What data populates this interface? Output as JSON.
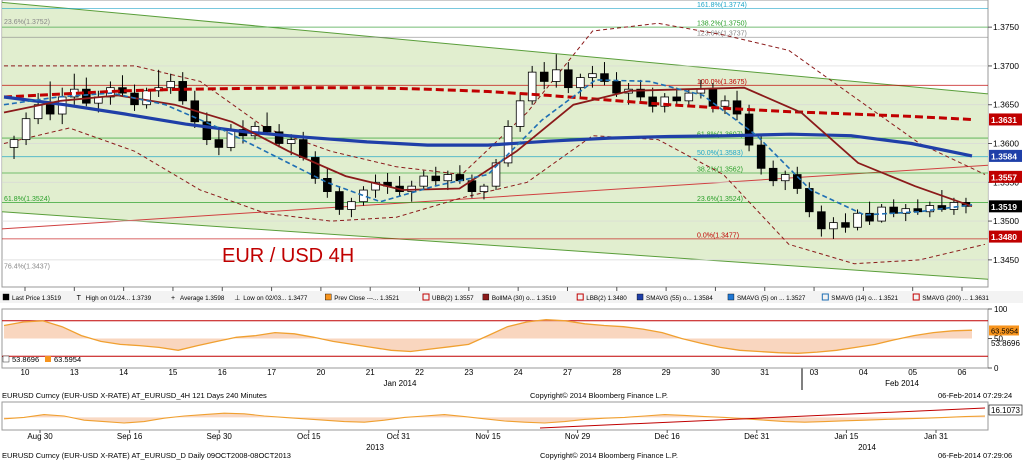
{
  "chart_data": {
    "type": "candlestick",
    "title": "EUR / USD 4H",
    "main_panel": {
      "ylim": [
        1.3415,
        1.3785
      ],
      "y_ticks": [
        "1.3450",
        "1.3500",
        "1.3550",
        "1.3600",
        "1.3650",
        "1.3700",
        "1.3750"
      ],
      "x_ticks": [
        "10",
        "13",
        "14",
        "15",
        "16",
        "17",
        "20",
        "21",
        "22",
        "23",
        "24",
        "27",
        "28",
        "29",
        "30",
        "31",
        "03",
        "04",
        "05",
        "06"
      ],
      "x_group_labels": [
        "Jan 2014",
        "Feb 2014"
      ],
      "price_tags": [
        {
          "label": "1.3631",
          "value": 1.3631,
          "color": "#c00000"
        },
        {
          "label": "1.3584",
          "value": 1.3584,
          "color": "#1f3fa8"
        },
        {
          "label": "1.3557",
          "value": 1.3557,
          "color": "#c00000"
        },
        {
          "label": "1.3519",
          "value": 1.3519,
          "color": "#000000"
        },
        {
          "label": "1.3480",
          "value": 1.348,
          "color": "#c00000"
        }
      ],
      "fib_levels_right": [
        {
          "label": "161.8%(1.3774)",
          "value": 1.3774
        },
        {
          "label": "138.2%(1.3750)",
          "value": 1.375
        },
        {
          "label": "123.6%(1.3737)",
          "value": 1.3737
        },
        {
          "label": "100.0%(1.3675)",
          "value": 1.3675
        },
        {
          "label": "61.8%(1.3607)",
          "value": 1.3607
        },
        {
          "label": "50.0%(1.3583)",
          "value": 1.3583
        },
        {
          "label": "38.2%(1.3562)",
          "value": 1.3562
        },
        {
          "label": "23.6%(1.3524)",
          "value": 1.3524
        },
        {
          "label": "0.0%(1.3477)",
          "value": 1.3477
        }
      ],
      "fib_levels_left": [
        {
          "label": "23.6%(1.3752)",
          "value": 1.3752
        },
        {
          "label": "61.8%(1.3524)",
          "value": 1.3524
        },
        {
          "label": "76.4%(1.3437)",
          "value": 1.3437
        }
      ],
      "candles": [
        [
          1.3595,
          1.361,
          1.358,
          1.3605
        ],
        [
          1.3605,
          1.364,
          1.3598,
          1.3632
        ],
        [
          1.3632,
          1.3665,
          1.3625,
          1.365
        ],
        [
          1.365,
          1.368,
          1.363,
          1.3638
        ],
        [
          1.3638,
          1.3672,
          1.3625,
          1.366
        ],
        [
          1.366,
          1.369,
          1.365,
          1.367
        ],
        [
          1.367,
          1.3685,
          1.3648,
          1.3652
        ],
        [
          1.3652,
          1.3668,
          1.364,
          1.366
        ],
        [
          1.366,
          1.368,
          1.365,
          1.3672
        ],
        [
          1.3672,
          1.3688,
          1.366,
          1.3665
        ],
        [
          1.3665,
          1.3676,
          1.3642,
          1.365
        ],
        [
          1.365,
          1.3672,
          1.3645,
          1.3668
        ],
        [
          1.3668,
          1.3695,
          1.366,
          1.3672
        ],
        [
          1.3672,
          1.369,
          1.3664,
          1.368
        ],
        [
          1.368,
          1.3692,
          1.365,
          1.3655
        ],
        [
          1.3655,
          1.3668,
          1.362,
          1.3628
        ],
        [
          1.3628,
          1.364,
          1.3598,
          1.3605
        ],
        [
          1.3605,
          1.3618,
          1.3585,
          1.3595
        ],
        [
          1.3595,
          1.3625,
          1.359,
          1.3618
        ],
        [
          1.3618,
          1.363,
          1.36,
          1.361
        ],
        [
          1.361,
          1.3628,
          1.3605,
          1.3622
        ],
        [
          1.3622,
          1.364,
          1.3612,
          1.3615
        ],
        [
          1.3615,
          1.3625,
          1.3595,
          1.36
        ],
        [
          1.36,
          1.3612,
          1.3585,
          1.3605
        ],
        [
          1.3605,
          1.3615,
          1.3578,
          1.3582
        ],
        [
          1.3582,
          1.359,
          1.3548,
          1.3555
        ],
        [
          1.3555,
          1.3568,
          1.353,
          1.3538
        ],
        [
          1.3538,
          1.3545,
          1.3508,
          1.3515
        ],
        [
          1.3515,
          1.353,
          1.3505,
          1.3525
        ],
        [
          1.3525,
          1.3545,
          1.352,
          1.354
        ],
        [
          1.354,
          1.356,
          1.353,
          1.355
        ],
        [
          1.355,
          1.3562,
          1.3535,
          1.3545
        ],
        [
          1.3545,
          1.3558,
          1.3532,
          1.3538
        ],
        [
          1.3538,
          1.3552,
          1.3525,
          1.3545
        ],
        [
          1.3545,
          1.3565,
          1.354,
          1.3558
        ],
        [
          1.3558,
          1.357,
          1.3545,
          1.3552
        ],
        [
          1.3552,
          1.3565,
          1.354,
          1.356
        ],
        [
          1.356,
          1.3572,
          1.3548,
          1.3552
        ],
        [
          1.3552,
          1.356,
          1.353,
          1.3538
        ],
        [
          1.3538,
          1.3548,
          1.3528,
          1.3545
        ],
        [
          1.3545,
          1.358,
          1.354,
          1.3575
        ],
        [
          1.3575,
          1.363,
          1.357,
          1.3622
        ],
        [
          1.3622,
          1.3665,
          1.3615,
          1.3655
        ],
        [
          1.3655,
          1.37,
          1.365,
          1.3692
        ],
        [
          1.3692,
          1.3705,
          1.367,
          1.368
        ],
        [
          1.368,
          1.3715,
          1.3672,
          1.3695
        ],
        [
          1.3695,
          1.3705,
          1.3665,
          1.3672
        ],
        [
          1.3672,
          1.369,
          1.366,
          1.3685
        ],
        [
          1.3685,
          1.37,
          1.3672,
          1.369
        ],
        [
          1.369,
          1.3705,
          1.3675,
          1.368
        ],
        [
          1.368,
          1.3692,
          1.366,
          1.3665
        ],
        [
          1.3665,
          1.3678,
          1.365,
          1.367
        ],
        [
          1.367,
          1.3682,
          1.3655,
          1.366
        ],
        [
          1.366,
          1.3672,
          1.364,
          1.3648
        ],
        [
          1.3648,
          1.3665,
          1.364,
          1.366
        ],
        [
          1.366,
          1.3672,
          1.365,
          1.3655
        ],
        [
          1.3655,
          1.367,
          1.3648,
          1.3665
        ],
        [
          1.3665,
          1.3682,
          1.3658,
          1.367
        ],
        [
          1.367,
          1.3678,
          1.364,
          1.3648
        ],
        [
          1.3648,
          1.3662,
          1.3638,
          1.3655
        ],
        [
          1.3655,
          1.3668,
          1.363,
          1.3638
        ],
        [
          1.3638,
          1.365,
          1.359,
          1.3598
        ],
        [
          1.3598,
          1.361,
          1.356,
          1.3568
        ],
        [
          1.3568,
          1.3578,
          1.3545,
          1.3552
        ],
        [
          1.3552,
          1.3565,
          1.354,
          1.356
        ],
        [
          1.356,
          1.357,
          1.3535,
          1.3542
        ],
        [
          1.3542,
          1.355,
          1.3505,
          1.3512
        ],
        [
          1.3512,
          1.352,
          1.348,
          1.349
        ],
        [
          1.349,
          1.3505,
          1.3477,
          1.3498
        ],
        [
          1.3498,
          1.351,
          1.3485,
          1.3492
        ],
        [
          1.3492,
          1.3515,
          1.3488,
          1.351
        ],
        [
          1.351,
          1.3525,
          1.3495,
          1.35
        ],
        [
          1.35,
          1.3522,
          1.3498,
          1.3518
        ],
        [
          1.3518,
          1.3528,
          1.3505,
          1.351
        ],
        [
          1.351,
          1.3522,
          1.35,
          1.3516
        ],
        [
          1.3516,
          1.3528,
          1.3508,
          1.3512
        ],
        [
          1.3512,
          1.3525,
          1.3505,
          1.352
        ],
        [
          1.352,
          1.354,
          1.3512,
          1.3515
        ],
        [
          1.3515,
          1.353,
          1.3508,
          1.3524
        ],
        [
          1.3524,
          1.353,
          1.351,
          1.3519
        ]
      ],
      "ma_200": [
        1.366,
        1.3664,
        1.3668,
        1.367,
        1.3671,
        1.3672,
        1.3672,
        1.367,
        1.3667,
        1.3662,
        1.3656,
        1.365,
        1.3645,
        1.3641,
        1.3638,
        1.3635,
        1.3631
      ],
      "ma_55": [
        1.366,
        1.365,
        1.3638,
        1.3625,
        1.3615,
        1.3608,
        1.3602,
        1.3598,
        1.3598,
        1.3603,
        1.3607,
        1.3609,
        1.361,
        1.3612,
        1.361,
        1.36,
        1.3584
      ],
      "bollinger_mid": [
        1.364,
        1.3655,
        1.3662,
        1.365,
        1.3628,
        1.359,
        1.3558,
        1.354,
        1.3542,
        1.359,
        1.365,
        1.3668,
        1.367,
        1.3672,
        1.364,
        1.3575,
        1.3545,
        1.3519
      ],
      "sma_14": [
        1.365,
        1.366,
        1.3665,
        1.365,
        1.362,
        1.3585,
        1.355,
        1.3525,
        1.3545,
        1.356,
        1.363,
        1.3682,
        1.368,
        1.3662,
        1.361,
        1.354,
        1.3508,
        1.3512,
        1.3521
      ],
      "bands_upper": [
        1.37,
        1.37,
        1.37,
        1.368,
        1.362,
        1.359,
        1.357,
        1.356,
        1.364,
        1.3745,
        1.3755,
        1.374,
        1.372,
        1.366,
        1.36,
        1.356
      ],
      "bands_lower": [
        1.36,
        1.362,
        1.359,
        1.354,
        1.351,
        1.35,
        1.3505,
        1.353,
        1.355,
        1.361,
        1.3605,
        1.356,
        1.347,
        1.3445,
        1.345,
        1.347
      ]
    },
    "legend": [
      {
        "marker": "candle",
        "color": "#000000",
        "text": "Last Price 1.3519"
      },
      {
        "marker": "T",
        "color": "#000000",
        "text": "High on 01/24... 1.3739"
      },
      {
        "marker": "plus",
        "color": "#000000",
        "text": "Average 1.3598"
      },
      {
        "marker": "bottom",
        "color": "#000000",
        "text": "Low on 02/03... 1.3477"
      },
      {
        "marker": "square",
        "color": "#f7941d",
        "text": "Prev Close ---... 1.3521"
      },
      {
        "marker": "bracket",
        "color": "#c00000",
        "text": "UBB(2) 1.3557"
      },
      {
        "marker": "square",
        "color": "#8b1a1a",
        "text": "BollMA (30) o... 1.3519"
      },
      {
        "marker": "bracket",
        "color": "#c00000",
        "text": "LBB(2) 1.3480"
      },
      {
        "marker": "square",
        "color": "#1f3fa8",
        "text": "SMAVG (55) o... 1.3584"
      },
      {
        "marker": "square",
        "color": "#1f77d4",
        "text": "SMAVG (5) on ... 1.3527"
      },
      {
        "marker": "bracket",
        "color": "#1f6fb4",
        "text": "SMAVG (14) o... 1.3521"
      },
      {
        "marker": "bracket",
        "color": "#c00000",
        "text": "SMAVG (200) ... 1.3631"
      }
    ],
    "oscillator": {
      "ylim": [
        0,
        100
      ],
      "y_ticks": [
        "100",
        "50",
        "0"
      ],
      "value_tags": [
        "63.5954",
        "53.8696"
      ],
      "legend": [
        {
          "color": "#ffffff",
          "text": "53.8696"
        },
        {
          "color": "#f7941d",
          "text": "63.5954"
        }
      ],
      "line": [
        72,
        78,
        80,
        70,
        55,
        45,
        40,
        38,
        35,
        30,
        38,
        45,
        52,
        55,
        60,
        58,
        52,
        45,
        40,
        35,
        30,
        28,
        32,
        36,
        40,
        55,
        70,
        78,
        82,
        80,
        75,
        72,
        70,
        66,
        60,
        50,
        42,
        35,
        30,
        28,
        26,
        25,
        27,
        30,
        35,
        40,
        48,
        55,
        60,
        63,
        64
      ]
    },
    "footer_top": {
      "left": "EURUSD Curncy (EUR-USD X-RATE) AT_EURUSD_4H 121 Days 240 Minutes",
      "center": "Copyright© 2014 Bloomberg Finance L.P.",
      "right": "06-Feb-2014 07:29:24"
    },
    "daily_panel": {
      "x_ticks": [
        "Aug 30",
        "Sep 16",
        "Sep 30",
        "Oct 15",
        "Oct 31",
        "Nov 15",
        "Nov 29",
        "Dec 16",
        "Dec 31",
        "Jan 15",
        "Jan 31"
      ],
      "year_labels": [
        "2013",
        "2014"
      ],
      "value_tag": "16.1073",
      "line": [
        40,
        45,
        55,
        50,
        35,
        30,
        25,
        30,
        42,
        50,
        55,
        60,
        58,
        50,
        45,
        40,
        35,
        30,
        28,
        35,
        45,
        50,
        55,
        48,
        40,
        32,
        28,
        25,
        30,
        38,
        42,
        45,
        50,
        55,
        52,
        48,
        45,
        40,
        35,
        30,
        28,
        30,
        33,
        35,
        38,
        40,
        42,
        45,
        48,
        50
      ]
    },
    "footer_bottom": {
      "left": "EURUSD Curncy (EUR-USD X-RATE) AT_EURUSD_D  Daily 09OCT2008-08OCT2013",
      "center": "Copyright© 2014 Bloomberg Finance L.P.",
      "right": "06-Feb-2014 07:29:06"
    }
  }
}
